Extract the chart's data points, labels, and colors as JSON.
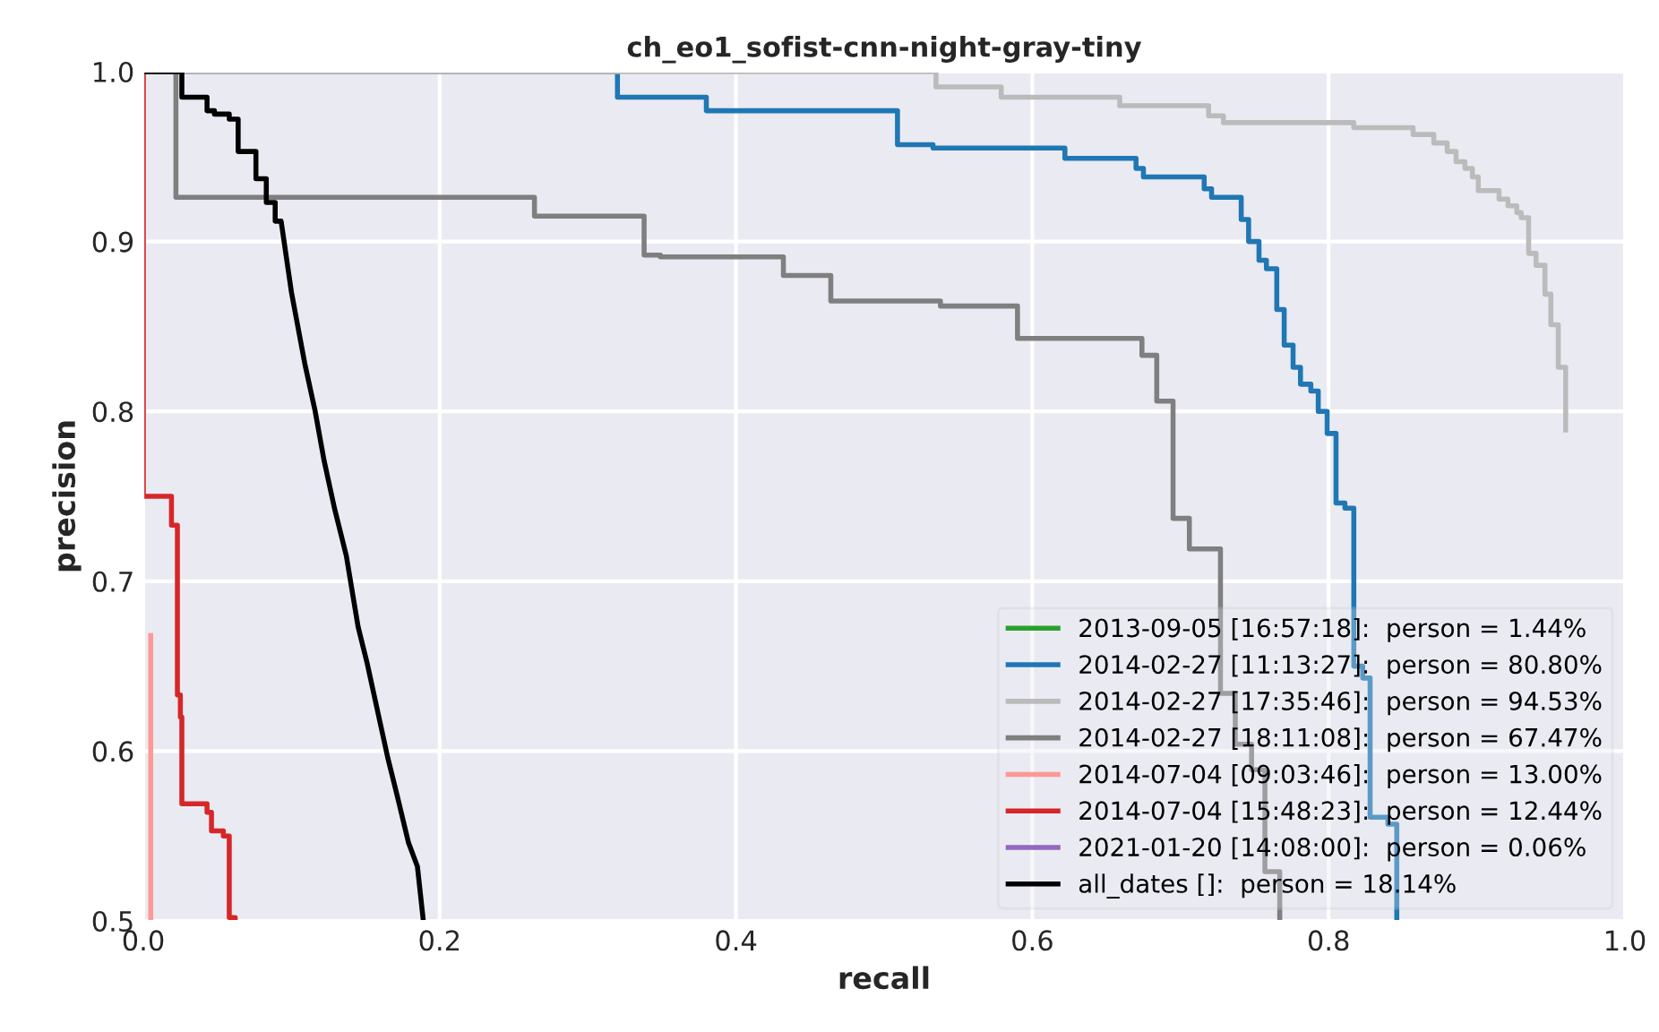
{
  "chart_data": {
    "type": "line",
    "title": "ch_eo1_sofist-cnn-night-gray-tiny",
    "xlabel": "recall",
    "ylabel": "precision",
    "xlim": [
      0.0,
      1.0
    ],
    "ylim": [
      0.5,
      1.0
    ],
    "xticks": [
      {
        "value": 0,
        "label": "0.0"
      },
      0.2,
      0.4,
      0.6,
      0.8,
      {
        "value": 1,
        "label": "1.0"
      }
    ],
    "yticks": [
      0.5,
      0.6,
      0.7,
      0.8,
      0.9,
      {
        "value": 1,
        "label": "1.0"
      }
    ],
    "grid": true,
    "legend": "bottom right",
    "series": [
      {
        "name": "2013-09-05 [16:57:18]:  person = 1.44%",
        "color": "#2ca02c"
      },
      {
        "name": "2014-02-27 [11:13:27]:  person = 80.80%",
        "color": "#1f77b4",
        "x": [
          0.0,
          0.32,
          0.32,
          0.38,
          0.38,
          0.509,
          0.509,
          0.533,
          0.533,
          0.622,
          0.622,
          0.67,
          0.67,
          0.675,
          0.675,
          0.716,
          0.716,
          0.721,
          0.721,
          0.741,
          0.741,
          0.746,
          0.746,
          0.753,
          0.753,
          0.758,
          0.758,
          0.765,
          0.765,
          0.77,
          0.77,
          0.776,
          0.776,
          0.781,
          0.781,
          0.788,
          0.788,
          0.793,
          0.793,
          0.799,
          0.799,
          0.805,
          0.805,
          0.811,
          0.811,
          0.817,
          0.817,
          0.823,
          0.823,
          0.828,
          0.828,
          0.84,
          0.84,
          0.846,
          0.846
        ],
        "values": [
          1.0,
          1.0,
          0.985,
          0.985,
          0.977,
          0.977,
          0.957,
          0.957,
          0.955,
          0.955,
          0.949,
          0.949,
          0.943,
          0.943,
          0.938,
          0.938,
          0.931,
          0.931,
          0.926,
          0.926,
          0.913,
          0.913,
          0.9,
          0.9,
          0.889,
          0.889,
          0.884,
          0.884,
          0.86,
          0.86,
          0.839,
          0.839,
          0.826,
          0.826,
          0.816,
          0.816,
          0.812,
          0.812,
          0.8,
          0.8,
          0.787,
          0.787,
          0.746,
          0.746,
          0.743,
          0.743,
          0.65,
          0.65,
          0.643,
          0.643,
          0.561,
          0.561,
          0.557,
          0.557,
          0.5
        ]
      },
      {
        "name": "2014-02-27 [17:35:46]:  person = 94.53%",
        "color": "#bbbbbb",
        "x": [
          0.0,
          0.535,
          0.535,
          0.579,
          0.579,
          0.659,
          0.659,
          0.719,
          0.719,
          0.729,
          0.729,
          0.817,
          0.817,
          0.857,
          0.857,
          0.871,
          0.871,
          0.88,
          0.88,
          0.886,
          0.886,
          0.892,
          0.892,
          0.897,
          0.897,
          0.901,
          0.901,
          0.915,
          0.915,
          0.921,
          0.921,
          0.927,
          0.927,
          0.93,
          0.93,
          0.935,
          0.935,
          0.94,
          0.94,
          0.946,
          0.946,
          0.95,
          0.95,
          0.955,
          0.955,
          0.96,
          0.96
        ],
        "values": [
          1.0,
          1.0,
          0.991,
          0.991,
          0.985,
          0.985,
          0.98,
          0.98,
          0.974,
          0.974,
          0.97,
          0.97,
          0.967,
          0.967,
          0.963,
          0.963,
          0.958,
          0.958,
          0.953,
          0.953,
          0.947,
          0.947,
          0.943,
          0.943,
          0.938,
          0.938,
          0.93,
          0.93,
          0.925,
          0.925,
          0.921,
          0.921,
          0.917,
          0.917,
          0.914,
          0.914,
          0.893,
          0.893,
          0.886,
          0.886,
          0.869,
          0.869,
          0.851,
          0.851,
          0.826,
          0.826,
          0.789
        ]
      },
      {
        "name": "2014-02-27 [18:11:08]:  person = 67.47%",
        "color": "#7f7f7f",
        "x": [
          0.0,
          0.022,
          0.022,
          0.264,
          0.264,
          0.338,
          0.338,
          0.349,
          0.349,
          0.432,
          0.432,
          0.464,
          0.464,
          0.538,
          0.538,
          0.59,
          0.59,
          0.674,
          0.674,
          0.684,
          0.684,
          0.695,
          0.695,
          0.706,
          0.706,
          0.727,
          0.727,
          0.737,
          0.737,
          0.748,
          0.748,
          0.757,
          0.757,
          0.767,
          0.767
        ],
        "values": [
          1.0,
          1.0,
          0.926,
          0.926,
          0.915,
          0.915,
          0.892,
          0.892,
          0.891,
          0.891,
          0.88,
          0.88,
          0.865,
          0.865,
          0.862,
          0.862,
          0.843,
          0.843,
          0.833,
          0.833,
          0.806,
          0.806,
          0.737,
          0.737,
          0.719,
          0.719,
          0.634,
          0.634,
          0.604,
          0.604,
          0.589,
          0.589,
          0.529,
          0.529,
          0.5
        ]
      },
      {
        "name": "2014-07-04 [09:03:46]:  person = 13.00%",
        "color": "#ff9896",
        "x": [
          0.005,
          0.005
        ],
        "values": [
          0.668,
          0.5
        ]
      },
      {
        "name": "2014-07-04 [15:48:23]:  person = 12.44%",
        "color": "#d62728",
        "x": [
          0.0,
          0.0,
          0.019,
          0.019,
          0.023,
          0.023,
          0.025,
          0.025,
          0.026,
          0.026,
          0.043,
          0.043,
          0.046,
          0.046,
          0.054,
          0.054,
          0.058,
          0.058,
          0.062,
          0.062
        ],
        "values": [
          1.0,
          0.75,
          0.75,
          0.733,
          0.733,
          0.633,
          0.633,
          0.62,
          0.62,
          0.569,
          0.569,
          0.564,
          0.564,
          0.553,
          0.553,
          0.55,
          0.55,
          0.502,
          0.502,
          0.5
        ]
      },
      {
        "name": "2021-01-20 [14:08:00]:  person = 0.06%",
        "color": "#9467bd"
      },
      {
        "name": "all_dates []:  person = 18.14%",
        "color": "#000000",
        "x": [
          0.0,
          0.026,
          0.026,
          0.043,
          0.043,
          0.048,
          0.048,
          0.058,
          0.058,
          0.064,
          0.064,
          0.076,
          0.076,
          0.083,
          0.083,
          0.089,
          0.089,
          0.093,
          0.1,
          0.109,
          0.116,
          0.122,
          0.129,
          0.137,
          0.145,
          0.151,
          0.159,
          0.165,
          0.171,
          0.179,
          0.185,
          0.189
        ],
        "values": [
          1.0,
          1.0,
          0.985,
          0.985,
          0.977,
          0.977,
          0.975,
          0.975,
          0.972,
          0.972,
          0.953,
          0.953,
          0.937,
          0.937,
          0.923,
          0.923,
          0.912,
          0.912,
          0.87,
          0.828,
          0.8,
          0.771,
          0.743,
          0.715,
          0.673,
          0.652,
          0.62,
          0.596,
          0.575,
          0.546,
          0.532,
          0.5
        ]
      }
    ]
  }
}
